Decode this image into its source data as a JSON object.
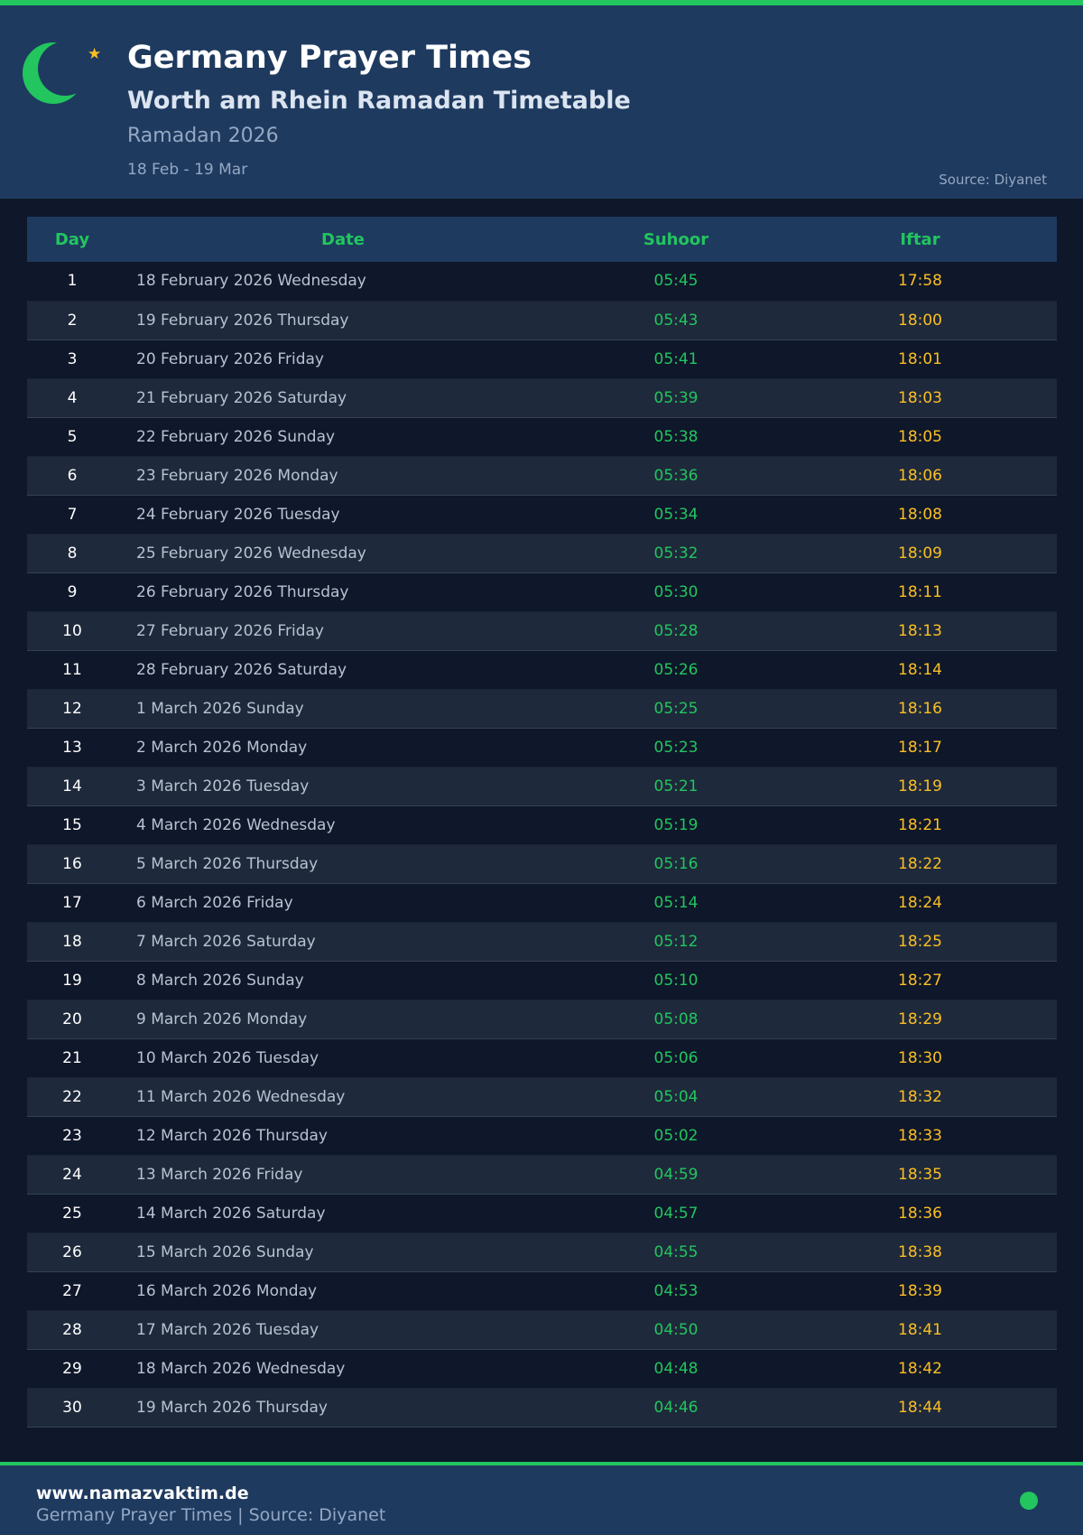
{
  "header": {
    "title": "Germany Prayer Times",
    "subtitle": "Worth am Rhein Ramadan Timetable",
    "period": "Ramadan 2026",
    "range": "18 Feb - 19 Mar",
    "source": "Source: Diyanet"
  },
  "colors": {
    "accent": "#22c55e",
    "iftar": "#fbbf24",
    "background": "#0f172a",
    "header": "#1e3a5f"
  },
  "table": {
    "columns": [
      "Day",
      "Date",
      "Suhoor",
      "Iftar"
    ],
    "rows": [
      [
        "1",
        "18 February 2026 Wednesday",
        "05:45",
        "17:58"
      ],
      [
        "2",
        "19 February 2026 Thursday",
        "05:43",
        "18:00"
      ],
      [
        "3",
        "20 February 2026 Friday",
        "05:41",
        "18:01"
      ],
      [
        "4",
        "21 February 2026 Saturday",
        "05:39",
        "18:03"
      ],
      [
        "5",
        "22 February 2026 Sunday",
        "05:38",
        "18:05"
      ],
      [
        "6",
        "23 February 2026 Monday",
        "05:36",
        "18:06"
      ],
      [
        "7",
        "24 February 2026 Tuesday",
        "05:34",
        "18:08"
      ],
      [
        "8",
        "25 February 2026 Wednesday",
        "05:32",
        "18:09"
      ],
      [
        "9",
        "26 February 2026 Thursday",
        "05:30",
        "18:11"
      ],
      [
        "10",
        "27 February 2026 Friday",
        "05:28",
        "18:13"
      ],
      [
        "11",
        "28 February 2026 Saturday",
        "05:26",
        "18:14"
      ],
      [
        "12",
        "1 March 2026 Sunday",
        "05:25",
        "18:16"
      ],
      [
        "13",
        "2 March 2026 Monday",
        "05:23",
        "18:17"
      ],
      [
        "14",
        "3 March 2026 Tuesday",
        "05:21",
        "18:19"
      ],
      [
        "15",
        "4 March 2026 Wednesday",
        "05:19",
        "18:21"
      ],
      [
        "16",
        "5 March 2026 Thursday",
        "05:16",
        "18:22"
      ],
      [
        "17",
        "6 March 2026 Friday",
        "05:14",
        "18:24"
      ],
      [
        "18",
        "7 March 2026 Saturday",
        "05:12",
        "18:25"
      ],
      [
        "19",
        "8 March 2026 Sunday",
        "05:10",
        "18:27"
      ],
      [
        "20",
        "9 March 2026 Monday",
        "05:08",
        "18:29"
      ],
      [
        "21",
        "10 March 2026 Tuesday",
        "05:06",
        "18:30"
      ],
      [
        "22",
        "11 March 2026 Wednesday",
        "05:04",
        "18:32"
      ],
      [
        "23",
        "12 March 2026 Thursday",
        "05:02",
        "18:33"
      ],
      [
        "24",
        "13 March 2026 Friday",
        "04:59",
        "18:35"
      ],
      [
        "25",
        "14 March 2026 Saturday",
        "04:57",
        "18:36"
      ],
      [
        "26",
        "15 March 2026 Sunday",
        "04:55",
        "18:38"
      ],
      [
        "27",
        "16 March 2026 Monday",
        "04:53",
        "18:39"
      ],
      [
        "28",
        "17 March 2026 Tuesday",
        "04:50",
        "18:41"
      ],
      [
        "29",
        "18 March 2026 Wednesday",
        "04:48",
        "18:42"
      ],
      [
        "30",
        "19 March 2026 Thursday",
        "04:46",
        "18:44"
      ]
    ]
  },
  "footer": {
    "site": "www.namazvaktim.de",
    "text": "Germany Prayer Times | Source: Diyanet"
  }
}
